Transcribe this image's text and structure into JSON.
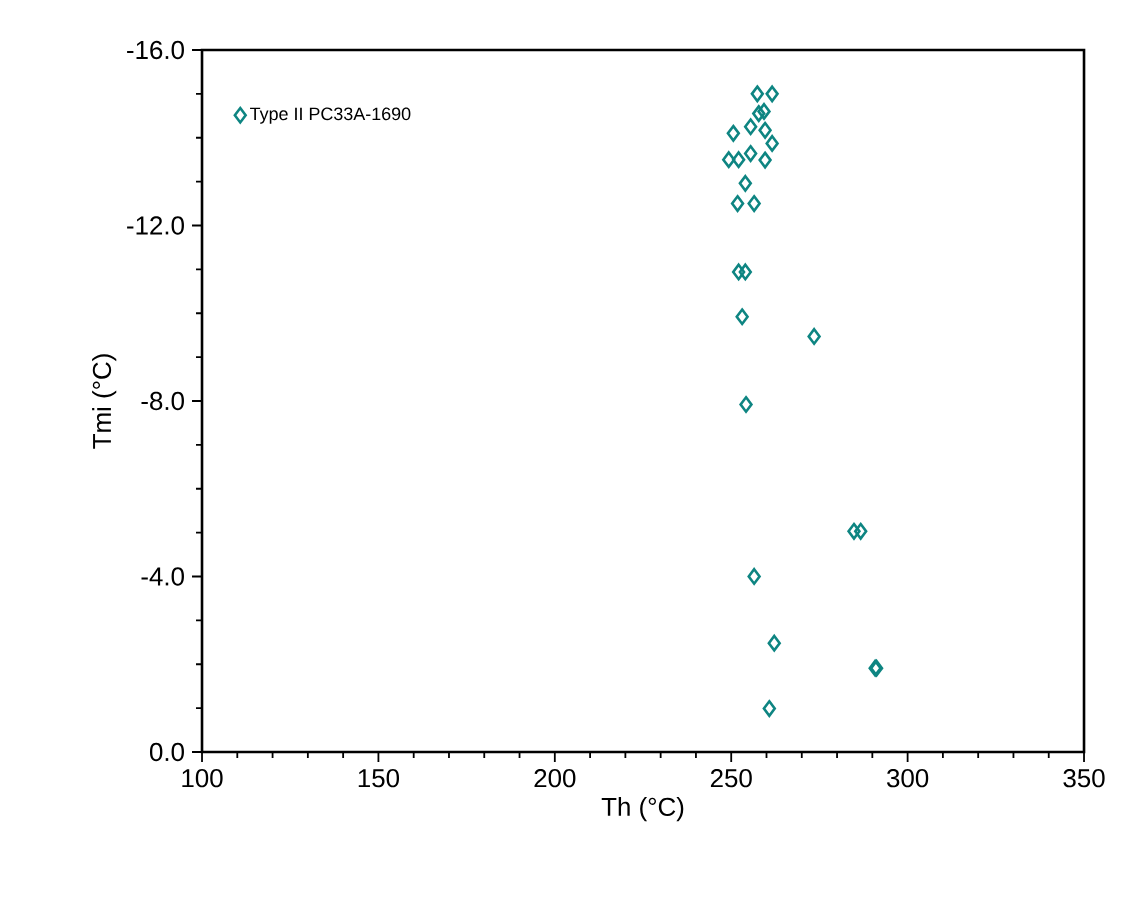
{
  "chart_data": {
    "type": "scatter",
    "xlabel": "Th (°C)",
    "ylabel": "Tmi (°C)",
    "series": [
      {
        "name": "Type II PC33A-1690",
        "color": "#0e8582",
        "x": [
          257.4,
          261.6,
          257.8,
          259.3,
          250.6,
          255.5,
          259.6,
          261.6,
          249.3,
          252.1,
          255.5,
          259.6,
          254.0,
          251.8,
          256.5,
          252.1,
          254.0,
          253.1,
          273.5,
          254.2,
          284.8,
          286.7,
          256.5,
          262.2,
          290.8,
          291.2,
          260.8
        ],
        "values": [
          -15.0,
          -15.0,
          -14.55,
          -14.6,
          -14.1,
          -14.25,
          -14.17,
          -13.87,
          -13.5,
          -13.5,
          -13.64,
          -13.49,
          -12.96,
          -12.5,
          -12.5,
          -10.94,
          -10.94,
          -9.92,
          -9.47,
          -7.92,
          -5.03,
          -5.03,
          -4.0,
          -2.48,
          -1.91,
          -1.91,
          -0.99
        ]
      }
    ],
    "xlim": [
      100,
      350
    ],
    "ylim": [
      0,
      -16
    ],
    "xticks": [
      100,
      150,
      200,
      250,
      300,
      350
    ],
    "yticks": [
      {
        "value": 0,
        "label": "0.0"
      },
      {
        "value": -4,
        "label": "-4.0"
      },
      {
        "value": -8,
        "label": "-8.0"
      },
      {
        "value": -12,
        "label": "-12.0"
      },
      {
        "value": -16,
        "label": "-16.0"
      }
    ],
    "legend": "top left",
    "marker": "diamond"
  }
}
